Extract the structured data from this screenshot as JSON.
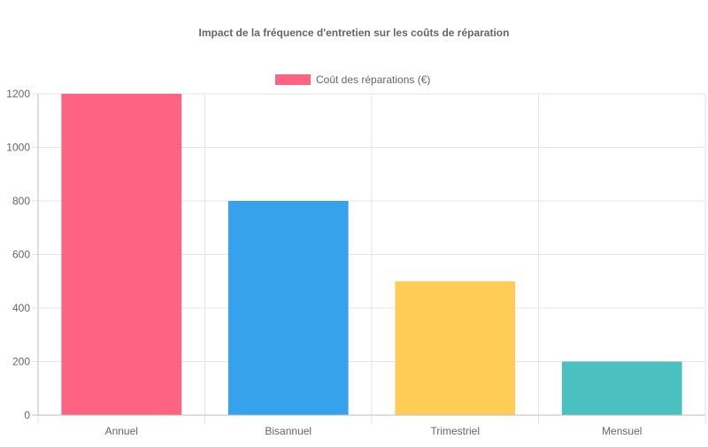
{
  "chart_data": {
    "type": "bar",
    "title": "Impact de la fréquence d'entretien sur les coûts de réparation",
    "xlabel": "",
    "ylabel": "",
    "categories": [
      "Annuel",
      "Bisannuel",
      "Trimestriel",
      "Mensuel"
    ],
    "series": [
      {
        "name": "Coût des réparations (€)",
        "values": [
          1200,
          800,
          500,
          200
        ],
        "colors": [
          "#ff6384",
          "#36a2eb",
          "#ffcd56",
          "#4bc0c0"
        ]
      }
    ],
    "ylim": [
      0,
      1200
    ],
    "yticks": [
      "0",
      "200",
      "400",
      "600",
      "800",
      "1000",
      "1200"
    ],
    "grid": true,
    "legend": "top-center",
    "colors": {
      "grid": "#e5e5e5",
      "axis": "#bdbdbd",
      "tick_text": "#666666",
      "title_text": "#666666",
      "legend_swatch": "#ff6384"
    }
  }
}
